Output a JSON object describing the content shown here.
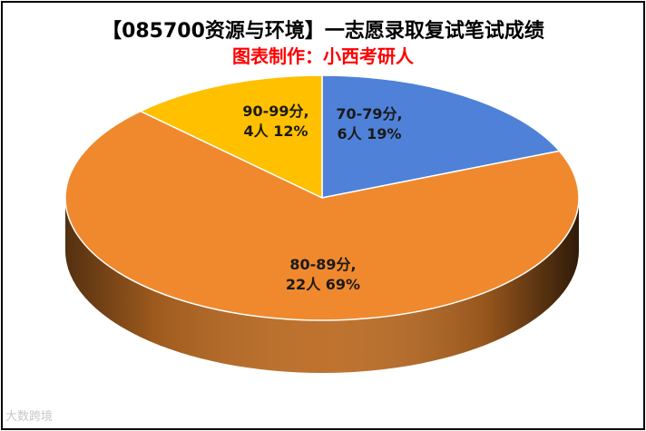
{
  "chart_data": {
    "type": "pie",
    "title": "【085700资源与环境】一志愿录取复试笔试成绩",
    "subtitle": "图表制作：小西考研人",
    "subtitle_color": "#ff0000",
    "slices": [
      {
        "label": "70-79分",
        "count_label": "6人",
        "pct_label": "19%",
        "value": 6,
        "percent": 19,
        "color": "#4f81d9"
      },
      {
        "label": "80-89分",
        "count_label": "22人",
        "pct_label": "69%",
        "value": 22,
        "percent": 69,
        "color": "#f0892d"
      },
      {
        "label": "90-99分",
        "count_label": "4人",
        "pct_label": "12%",
        "value": 4,
        "percent": 12,
        "color": "#ffc000"
      }
    ],
    "start": "12 o'clock",
    "direction": "clockwise",
    "style": "3D tilted pie"
  },
  "watermark": "大数跨境"
}
